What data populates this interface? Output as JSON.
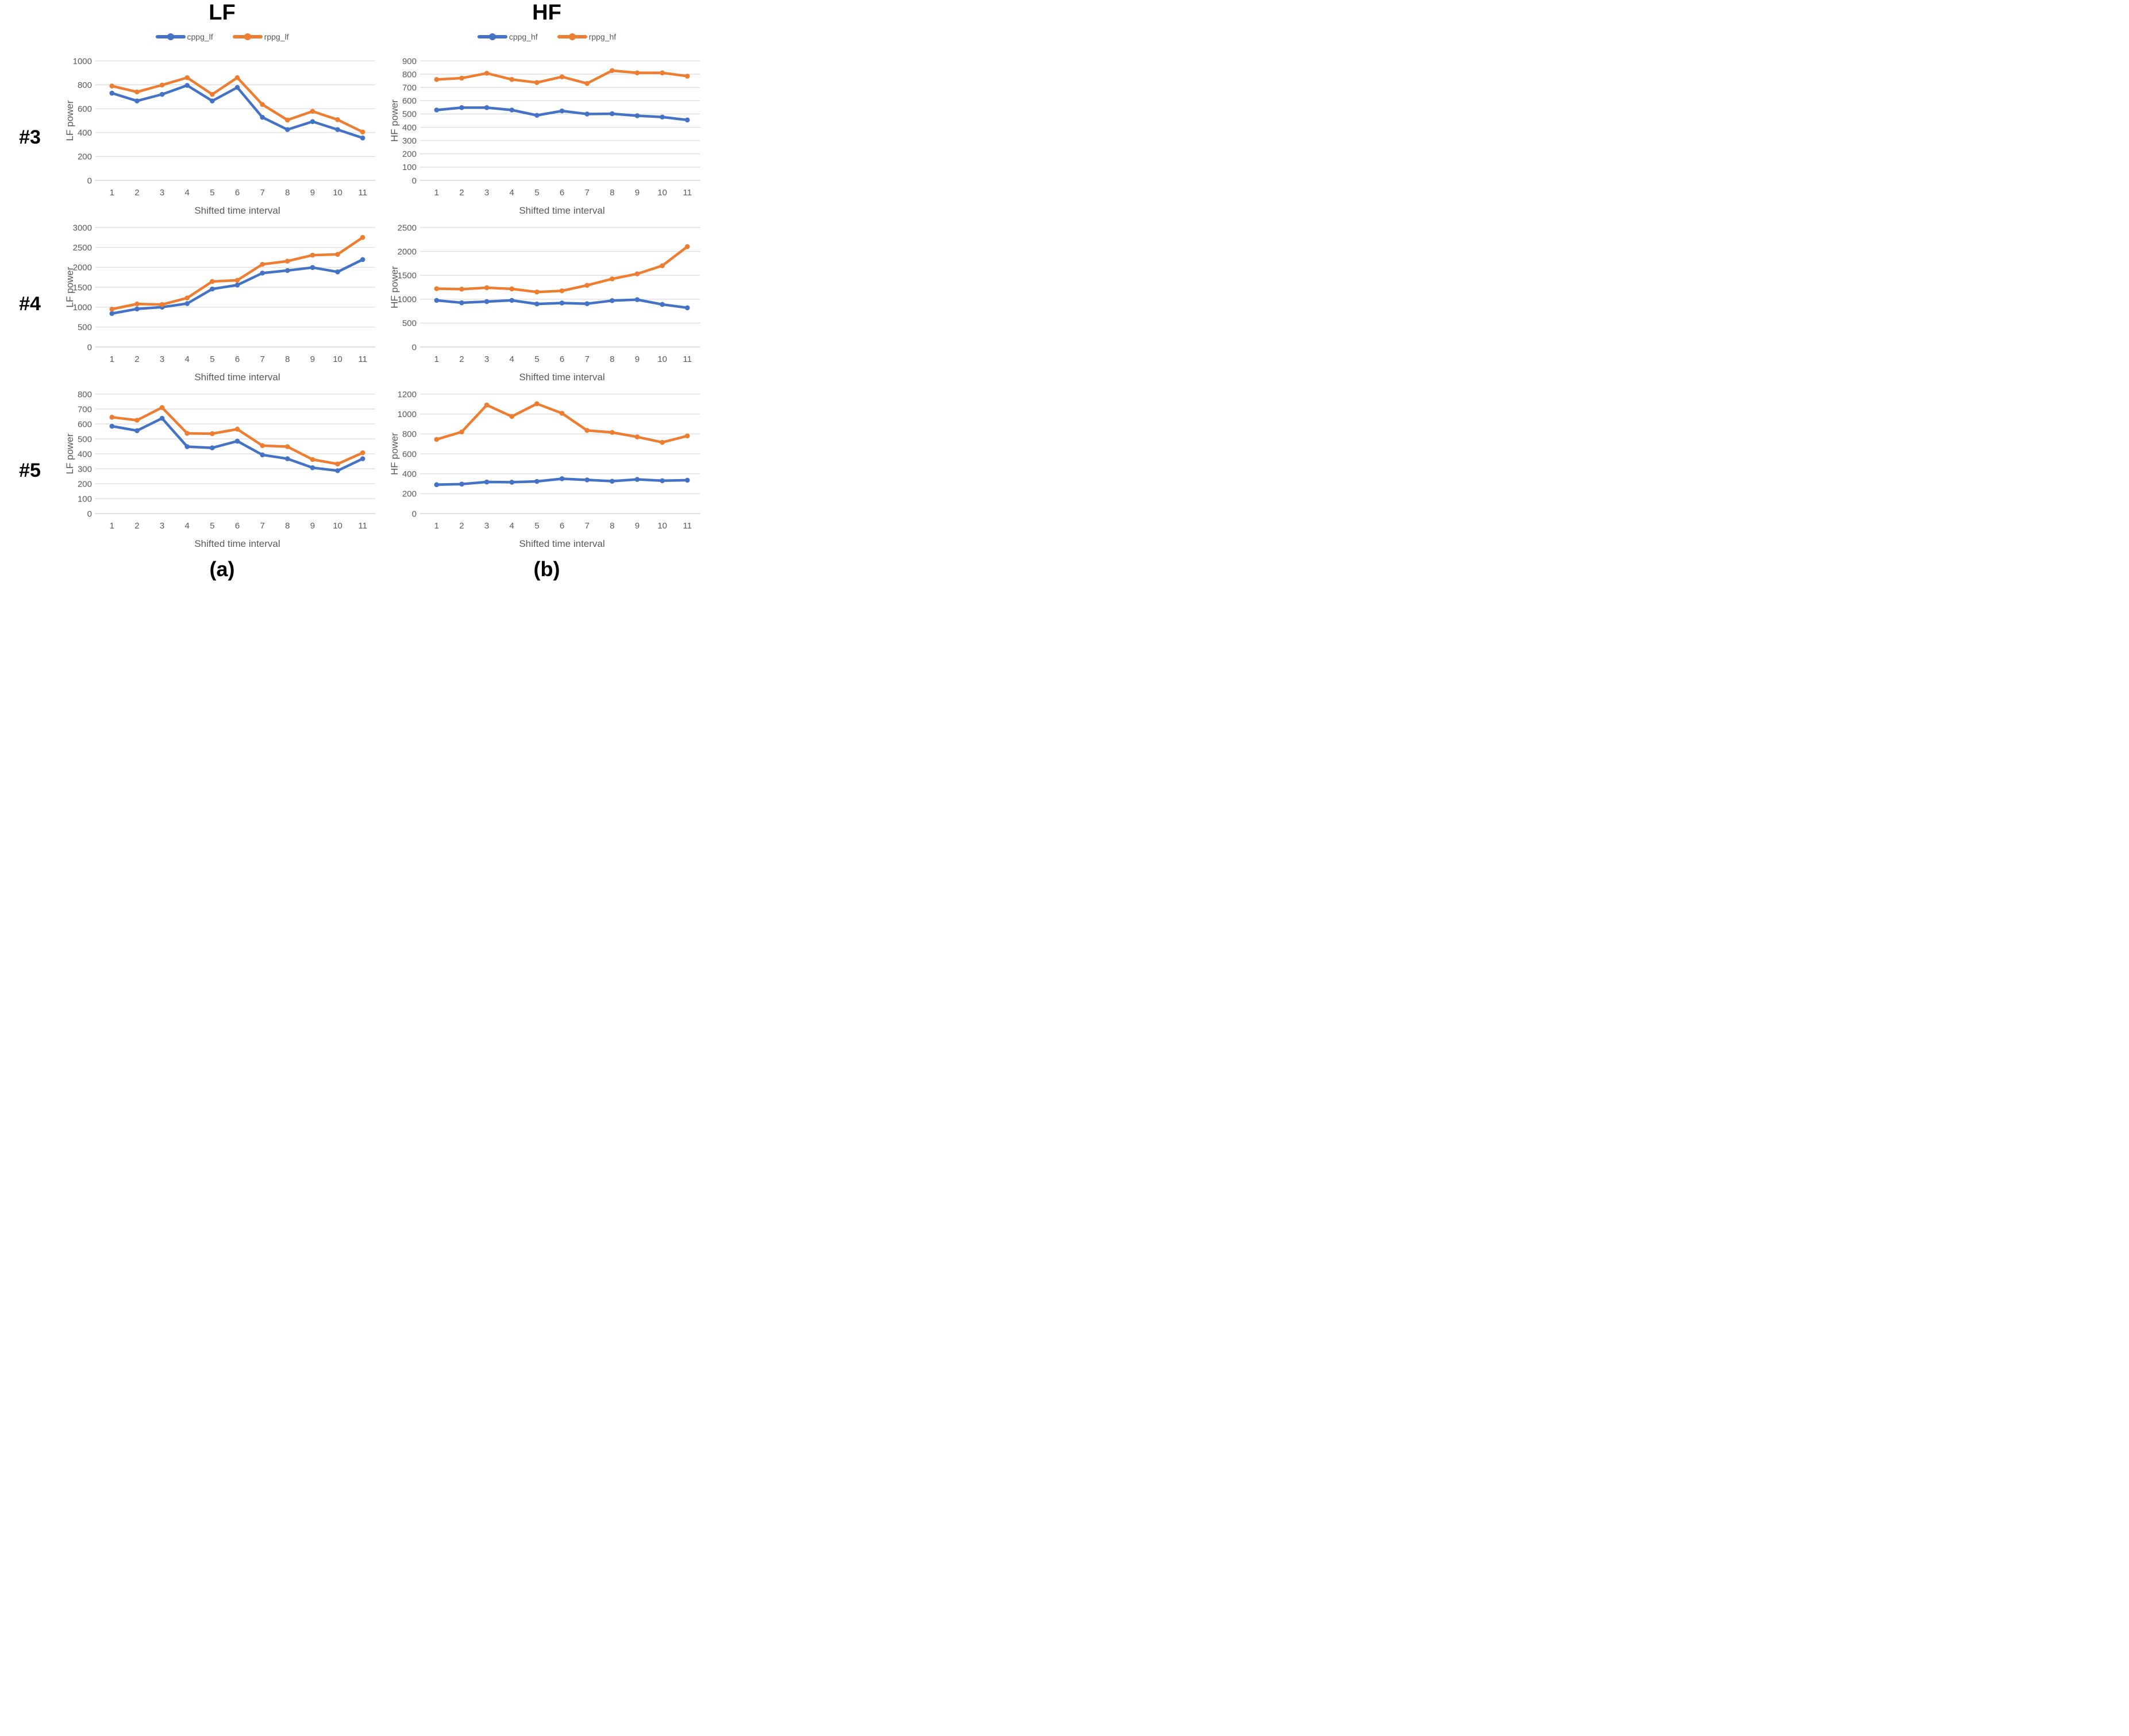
{
  "figure": {
    "rows": [
      "#3",
      "#4",
      "#5"
    ],
    "columns": [
      {
        "title": "LF",
        "footer": "(a)"
      },
      {
        "title": "HF",
        "footer": "(b)"
      }
    ],
    "colors": {
      "cppg": "#4472C4",
      "rppg": "#ED7D31",
      "gridline": "#D9D9D9",
      "zero_axis": "#CBCBCB",
      "axis_text": "#595959"
    }
  },
  "chart_data": [
    {
      "type": "line",
      "row": "#3",
      "column": "LF",
      "x": [
        1,
        2,
        3,
        4,
        5,
        6,
        7,
        8,
        9,
        10,
        11
      ],
      "xlabel": "Shifted time interval",
      "ylabel": "LF power",
      "ylim": [
        0,
        1000
      ],
      "ytick_step": 200,
      "grid": true,
      "legend_position": "top",
      "series": [
        {
          "name": "cppg_lf",
          "color": "#4472C4",
          "values": [
            730,
            665,
            720,
            795,
            665,
            778,
            528,
            425,
            492,
            425,
            355
          ]
        },
        {
          "name": "rppg_lf",
          "color": "#ED7D31",
          "values": [
            790,
            740,
            798,
            860,
            720,
            860,
            635,
            505,
            578,
            508,
            405
          ]
        }
      ]
    },
    {
      "type": "line",
      "row": "#3",
      "column": "HF",
      "x": [
        1,
        2,
        3,
        4,
        5,
        6,
        7,
        8,
        9,
        10,
        11
      ],
      "xlabel": "Shifted time interval",
      "ylabel": "HF power",
      "ylim": [
        0,
        900
      ],
      "ytick_step": 100,
      "grid": true,
      "legend_position": "top",
      "series": [
        {
          "name": "cppg_hf",
          "color": "#4472C4",
          "values": [
            530,
            548,
            548,
            530,
            490,
            523,
            500,
            502,
            487,
            477,
            455
          ]
        },
        {
          "name": "rppg_hf",
          "color": "#ED7D31",
          "values": [
            760,
            770,
            807,
            760,
            737,
            780,
            730,
            827,
            810,
            810,
            785
          ]
        }
      ]
    },
    {
      "type": "line",
      "row": "#4",
      "column": "LF",
      "x": [
        1,
        2,
        3,
        4,
        5,
        6,
        7,
        8,
        9,
        10,
        11
      ],
      "xlabel": "Shifted time interval",
      "ylabel": "LF power",
      "ylim": [
        0,
        3000
      ],
      "ytick_step": 500,
      "grid": true,
      "legend_position": "none",
      "series": [
        {
          "name": "cppg_lf",
          "color": "#4472C4",
          "values": [
            840,
            955,
            1000,
            1090,
            1455,
            1555,
            1855,
            1920,
            1995,
            1885,
            2195
          ]
        },
        {
          "name": "rppg_lf",
          "color": "#ED7D31",
          "values": [
            950,
            1080,
            1065,
            1230,
            1645,
            1675,
            2075,
            2155,
            2305,
            2325,
            2750
          ]
        }
      ]
    },
    {
      "type": "line",
      "row": "#4",
      "column": "HF",
      "x": [
        1,
        2,
        3,
        4,
        5,
        6,
        7,
        8,
        9,
        10,
        11
      ],
      "xlabel": "Shifted time interval",
      "ylabel": "HF power",
      "ylim": [
        0,
        2500
      ],
      "ytick_step": 500,
      "grid": true,
      "legend_position": "none",
      "series": [
        {
          "name": "cppg_hf",
          "color": "#4472C4",
          "values": [
            975,
            925,
            950,
            975,
            900,
            920,
            905,
            970,
            990,
            890,
            820
          ]
        },
        {
          "name": "rppg_hf",
          "color": "#ED7D31",
          "values": [
            1220,
            1210,
            1240,
            1215,
            1150,
            1175,
            1290,
            1425,
            1530,
            1700,
            2100
          ]
        }
      ]
    },
    {
      "type": "line",
      "row": "#5",
      "column": "LF",
      "x": [
        1,
        2,
        3,
        4,
        5,
        6,
        7,
        8,
        9,
        10,
        11
      ],
      "xlabel": "Shifted time interval",
      "ylabel": "LF power",
      "ylim": [
        0,
        800
      ],
      "ytick_step": 100,
      "grid": true,
      "legend_position": "none",
      "series": [
        {
          "name": "cppg_lf",
          "color": "#4472C4",
          "values": [
            585,
            555,
            638,
            448,
            440,
            485,
            393,
            367,
            307,
            287,
            367
          ]
        },
        {
          "name": "rppg_lf",
          "color": "#ED7D31",
          "values": [
            645,
            625,
            710,
            537,
            535,
            565,
            455,
            448,
            362,
            332,
            407
          ]
        }
      ]
    },
    {
      "type": "line",
      "row": "#5",
      "column": "HF",
      "x": [
        1,
        2,
        3,
        4,
        5,
        6,
        7,
        8,
        9,
        10,
        11
      ],
      "xlabel": "Shifted time interval",
      "ylabel": "HF power",
      "ylim": [
        0,
        1200
      ],
      "ytick_step": 200,
      "grid": true,
      "legend_position": "none",
      "series": [
        {
          "name": "cppg_hf",
          "color": "#4472C4",
          "values": [
            290,
            296,
            317,
            315,
            323,
            350,
            338,
            325,
            343,
            330,
            335
          ]
        },
        {
          "name": "rppg_hf",
          "color": "#ED7D31",
          "values": [
            745,
            820,
            1090,
            975,
            1103,
            1007,
            835,
            815,
            770,
            715,
            780
          ]
        }
      ]
    }
  ]
}
